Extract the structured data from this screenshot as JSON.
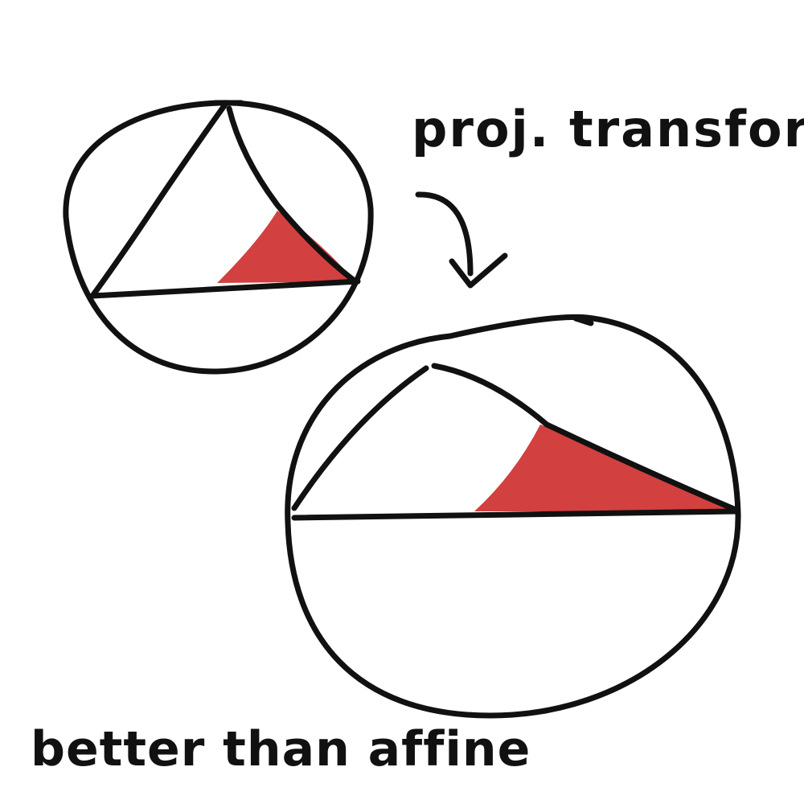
{
  "annotations": {
    "top_label": "proj. transform",
    "bottom_label": "better than affine"
  },
  "colors": {
    "ink": "#111111",
    "fill": "#d24040",
    "background": "#ffffff"
  }
}
